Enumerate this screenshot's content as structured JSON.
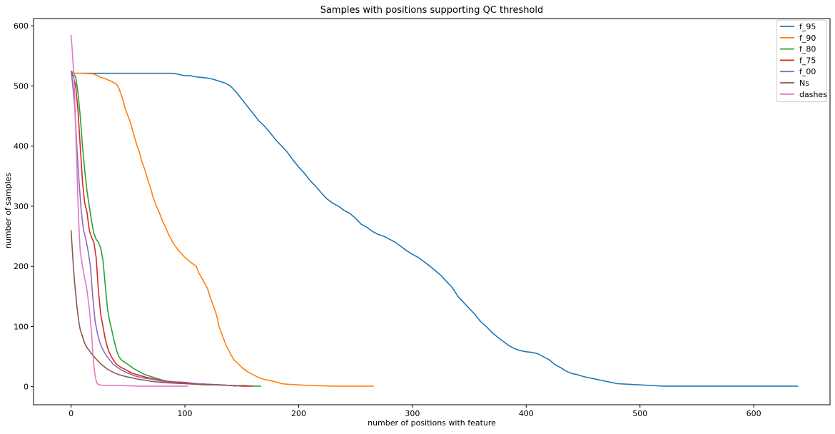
{
  "chart_data": {
    "type": "line",
    "title": "Samples with positions supporting QC threshold",
    "xlabel": "number of positions with feature",
    "ylabel": "number of samples",
    "xlim": [
      -33,
      667
    ],
    "ylim": [
      -30,
      612
    ],
    "xticks": [
      0,
      100,
      200,
      300,
      400,
      500,
      600
    ],
    "yticks": [
      0,
      100,
      200,
      300,
      400,
      500,
      600
    ],
    "grid": false,
    "legend_position": "top-right",
    "series": [
      {
        "name": "f_95",
        "color": "#1f77b4",
        "points": [
          [
            0,
            521
          ],
          [
            10,
            521
          ],
          [
            30,
            521
          ],
          [
            50,
            521
          ],
          [
            70,
            521
          ],
          [
            90,
            521
          ],
          [
            95,
            519
          ],
          [
            100,
            517
          ],
          [
            105,
            517
          ],
          [
            110,
            515
          ],
          [
            120,
            513
          ],
          [
            125,
            511
          ],
          [
            130,
            508
          ],
          [
            135,
            505
          ],
          [
            140,
            500
          ],
          [
            145,
            490
          ],
          [
            150,
            478
          ],
          [
            155,
            466
          ],
          [
            160,
            454
          ],
          [
            165,
            442
          ],
          [
            170,
            433
          ],
          [
            175,
            422
          ],
          [
            180,
            410
          ],
          [
            185,
            400
          ],
          [
            190,
            390
          ],
          [
            195,
            377
          ],
          [
            200,
            365
          ],
          [
            205,
            355
          ],
          [
            210,
            343
          ],
          [
            215,
            333
          ],
          [
            220,
            322
          ],
          [
            225,
            312
          ],
          [
            230,
            305
          ],
          [
            235,
            300
          ],
          [
            240,
            293
          ],
          [
            245,
            288
          ],
          [
            250,
            280
          ],
          [
            255,
            270
          ],
          [
            260,
            265
          ],
          [
            265,
            258
          ],
          [
            270,
            253
          ],
          [
            275,
            250
          ],
          [
            280,
            245
          ],
          [
            285,
            240
          ],
          [
            290,
            233
          ],
          [
            295,
            226
          ],
          [
            300,
            220
          ],
          [
            305,
            215
          ],
          [
            310,
            208
          ],
          [
            315,
            201
          ],
          [
            320,
            193
          ],
          [
            325,
            185
          ],
          [
            330,
            175
          ],
          [
            335,
            165
          ],
          [
            340,
            150
          ],
          [
            345,
            140
          ],
          [
            350,
            130
          ],
          [
            355,
            120
          ],
          [
            360,
            108
          ],
          [
            365,
            100
          ],
          [
            370,
            90
          ],
          [
            375,
            82
          ],
          [
            380,
            75
          ],
          [
            385,
            68
          ],
          [
            390,
            63
          ],
          [
            395,
            60
          ],
          [
            400,
            58
          ],
          [
            405,
            57
          ],
          [
            410,
            55
          ],
          [
            415,
            50
          ],
          [
            420,
            45
          ],
          [
            425,
            37
          ],
          [
            430,
            32
          ],
          [
            435,
            26
          ],
          [
            440,
            22
          ],
          [
            445,
            20
          ],
          [
            450,
            17
          ],
          [
            455,
            15
          ],
          [
            460,
            13
          ],
          [
            465,
            11
          ],
          [
            470,
            9
          ],
          [
            475,
            7
          ],
          [
            480,
            5
          ],
          [
            490,
            4
          ],
          [
            500,
            3
          ],
          [
            510,
            2
          ],
          [
            520,
            1
          ],
          [
            560,
            1
          ],
          [
            600,
            1
          ],
          [
            639,
            1
          ]
        ]
      },
      {
        "name": "f_90",
        "color": "#ff7f0e",
        "points": [
          [
            0,
            521
          ],
          [
            10,
            521
          ],
          [
            20,
            520
          ],
          [
            25,
            515
          ],
          [
            30,
            512
          ],
          [
            35,
            508
          ],
          [
            40,
            503
          ],
          [
            42,
            496
          ],
          [
            45,
            480
          ],
          [
            48,
            460
          ],
          [
            52,
            440
          ],
          [
            55,
            420
          ],
          [
            58,
            400
          ],
          [
            60,
            390
          ],
          [
            62,
            375
          ],
          [
            65,
            360
          ],
          [
            68,
            340
          ],
          [
            70,
            330
          ],
          [
            72,
            315
          ],
          [
            75,
            300
          ],
          [
            78,
            287
          ],
          [
            80,
            277
          ],
          [
            83,
            265
          ],
          [
            86,
            252
          ],
          [
            90,
            238
          ],
          [
            95,
            225
          ],
          [
            100,
            215
          ],
          [
            105,
            207
          ],
          [
            110,
            200
          ],
          [
            112,
            190
          ],
          [
            115,
            180
          ],
          [
            118,
            170
          ],
          [
            120,
            163
          ],
          [
            122,
            150
          ],
          [
            125,
            135
          ],
          [
            128,
            118
          ],
          [
            130,
            100
          ],
          [
            133,
            85
          ],
          [
            136,
            70
          ],
          [
            140,
            55
          ],
          [
            143,
            45
          ],
          [
            147,
            38
          ],
          [
            150,
            32
          ],
          [
            155,
            25
          ],
          [
            160,
            20
          ],
          [
            165,
            15
          ],
          [
            170,
            12
          ],
          [
            175,
            10
          ],
          [
            180,
            8
          ],
          [
            185,
            5
          ],
          [
            190,
            4
          ],
          [
            200,
            3
          ],
          [
            210,
            2
          ],
          [
            230,
            1
          ],
          [
            266,
            1
          ]
        ]
      },
      {
        "name": "f_80",
        "color": "#2ca02c",
        "points": [
          [
            0,
            525
          ],
          [
            2,
            521
          ],
          [
            4,
            515
          ],
          [
            6,
            490
          ],
          [
            8,
            450
          ],
          [
            10,
            400
          ],
          [
            12,
            360
          ],
          [
            14,
            325
          ],
          [
            16,
            300
          ],
          [
            18,
            275
          ],
          [
            20,
            255
          ],
          [
            22,
            245
          ],
          [
            24,
            240
          ],
          [
            26,
            230
          ],
          [
            28,
            210
          ],
          [
            30,
            170
          ],
          [
            32,
            130
          ],
          [
            34,
            108
          ],
          [
            36,
            92
          ],
          [
            38,
            75
          ],
          [
            40,
            60
          ],
          [
            42,
            50
          ],
          [
            44,
            45
          ],
          [
            46,
            42
          ],
          [
            50,
            37
          ],
          [
            55,
            30
          ],
          [
            60,
            25
          ],
          [
            65,
            20
          ],
          [
            70,
            17
          ],
          [
            75,
            14
          ],
          [
            80,
            11
          ],
          [
            85,
            9
          ],
          [
            90,
            8
          ],
          [
            100,
            7
          ],
          [
            110,
            5
          ],
          [
            120,
            4
          ],
          [
            130,
            3
          ],
          [
            140,
            2
          ],
          [
            150,
            2
          ],
          [
            160,
            1
          ],
          [
            167,
            1
          ]
        ]
      },
      {
        "name": "f_75",
        "color": "#d62728",
        "points": [
          [
            0,
            522
          ],
          [
            2,
            515
          ],
          [
            4,
            500
          ],
          [
            6,
            460
          ],
          [
            8,
            400
          ],
          [
            10,
            340
          ],
          [
            12,
            305
          ],
          [
            14,
            290
          ],
          [
            16,
            260
          ],
          [
            18,
            248
          ],
          [
            20,
            240
          ],
          [
            22,
            215
          ],
          [
            24,
            160
          ],
          [
            26,
            120
          ],
          [
            28,
            100
          ],
          [
            30,
            80
          ],
          [
            32,
            65
          ],
          [
            34,
            55
          ],
          [
            36,
            48
          ],
          [
            38,
            42
          ],
          [
            40,
            37
          ],
          [
            44,
            32
          ],
          [
            48,
            28
          ],
          [
            52,
            24
          ],
          [
            56,
            21
          ],
          [
            60,
            19
          ],
          [
            65,
            16
          ],
          [
            70,
            14
          ],
          [
            75,
            12
          ],
          [
            80,
            10
          ],
          [
            90,
            8
          ],
          [
            100,
            7
          ],
          [
            110,
            5
          ],
          [
            120,
            4
          ],
          [
            130,
            3
          ],
          [
            140,
            2
          ],
          [
            150,
            1
          ],
          [
            160,
            1
          ]
        ]
      },
      {
        "name": "f_00",
        "color": "#9467bd",
        "points": [
          [
            0,
            525
          ],
          [
            1,
            510
          ],
          [
            3,
            470
          ],
          [
            5,
            400
          ],
          [
            7,
            340
          ],
          [
            9,
            290
          ],
          [
            11,
            260
          ],
          [
            13,
            245
          ],
          [
            15,
            225
          ],
          [
            17,
            200
          ],
          [
            19,
            150
          ],
          [
            21,
            110
          ],
          [
            23,
            90
          ],
          [
            25,
            75
          ],
          [
            27,
            65
          ],
          [
            29,
            58
          ],
          [
            31,
            52
          ],
          [
            33,
            47
          ],
          [
            35,
            42
          ],
          [
            37,
            37
          ],
          [
            40,
            33
          ],
          [
            44,
            28
          ],
          [
            48,
            24
          ],
          [
            52,
            21
          ],
          [
            56,
            18
          ],
          [
            60,
            16
          ],
          [
            65,
            14
          ],
          [
            70,
            13
          ],
          [
            75,
            11
          ],
          [
            80,
            9
          ],
          [
            90,
            7
          ],
          [
            100,
            6
          ],
          [
            110,
            5
          ],
          [
            120,
            4
          ],
          [
            130,
            3
          ],
          [
            140,
            2
          ],
          [
            150,
            1
          ]
        ]
      },
      {
        "name": "Ns",
        "color": "#8c564b",
        "points": [
          [
            0,
            260
          ],
          [
            1,
            230
          ],
          [
            2,
            200
          ],
          [
            3,
            175
          ],
          [
            4,
            155
          ],
          [
            5,
            135
          ],
          [
            6,
            120
          ],
          [
            7,
            105
          ],
          [
            8,
            95
          ],
          [
            10,
            83
          ],
          [
            12,
            72
          ],
          [
            14,
            65
          ],
          [
            16,
            60
          ],
          [
            18,
            55
          ],
          [
            20,
            50
          ],
          [
            22,
            46
          ],
          [
            24,
            42
          ],
          [
            26,
            38
          ],
          [
            28,
            35
          ],
          [
            30,
            32
          ],
          [
            32,
            29
          ],
          [
            35,
            26
          ],
          [
            38,
            23
          ],
          [
            42,
            20
          ],
          [
            46,
            18
          ],
          [
            50,
            16
          ],
          [
            55,
            14
          ],
          [
            60,
            12
          ],
          [
            65,
            11
          ],
          [
            70,
            9
          ],
          [
            75,
            8
          ],
          [
            80,
            7
          ],
          [
            90,
            6
          ],
          [
            100,
            5
          ],
          [
            110,
            4
          ],
          [
            120,
            3
          ],
          [
            130,
            3
          ],
          [
            140,
            2
          ],
          [
            145,
            1
          ]
        ]
      },
      {
        "name": "dashes",
        "color": "#e377c2",
        "points": [
          [
            0,
            585
          ],
          [
            1,
            560
          ],
          [
            2,
            530
          ],
          [
            3,
            490
          ],
          [
            4,
            430
          ],
          [
            5,
            370
          ],
          [
            6,
            310
          ],
          [
            7,
            260
          ],
          [
            8,
            225
          ],
          [
            10,
            200
          ],
          [
            12,
            180
          ],
          [
            14,
            160
          ],
          [
            16,
            130
          ],
          [
            18,
            90
          ],
          [
            19,
            60
          ],
          [
            20,
            35
          ],
          [
            21,
            20
          ],
          [
            22,
            10
          ],
          [
            23,
            5
          ],
          [
            25,
            3
          ],
          [
            30,
            2
          ],
          [
            40,
            2
          ],
          [
            60,
            1
          ],
          [
            80,
            1
          ],
          [
            103,
            1
          ]
        ]
      }
    ]
  }
}
